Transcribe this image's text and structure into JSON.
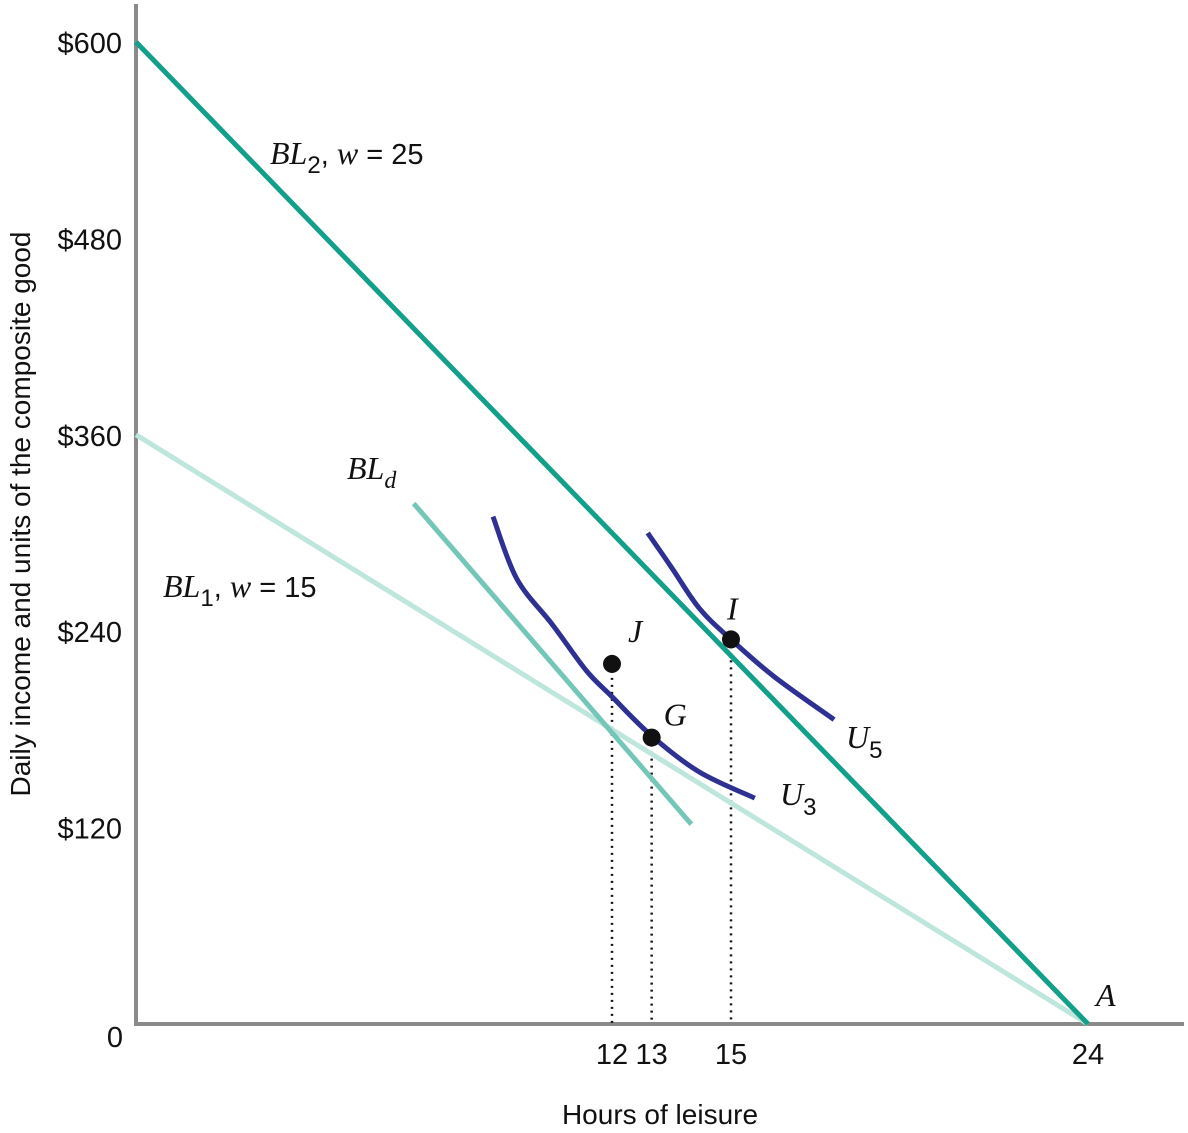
{
  "chart_data": {
    "type": "line",
    "title": "",
    "xlabel": "Hours of leisure",
    "ylabel": "Daily income and units of the composite good",
    "xlim": [
      0,
      25.1
    ],
    "ylim": [
      0,
      600
    ],
    "x_ticks": [
      {
        "value": 12,
        "label": "12"
      },
      {
        "value": 13,
        "label": "13"
      },
      {
        "value": 15,
        "label": "15"
      },
      {
        "value": 24,
        "label": "24"
      }
    ],
    "y_ticks": [
      {
        "value": 120,
        "label": "$120"
      },
      {
        "value": 240,
        "label": "$240"
      },
      {
        "value": 360,
        "label": "$360"
      },
      {
        "value": 480,
        "label": "$480"
      },
      {
        "value": 600,
        "label": "$600"
      }
    ],
    "origin_label": "0",
    "grid": false,
    "series": [
      {
        "name": "BL2, w = 25",
        "color": "#12a08a",
        "points": [
          [
            0,
            600
          ],
          [
            24,
            0
          ]
        ]
      },
      {
        "name": "BL1, w = 15",
        "color": "#bfe6dc",
        "points": [
          [
            0,
            360
          ],
          [
            24,
            0
          ]
        ]
      },
      {
        "name": "BLd",
        "color": "#74c7b8",
        "points": [
          [
            7.0,
            318
          ],
          [
            14.0,
            122
          ]
        ]
      },
      {
        "name": "U3",
        "color": "#2e3192",
        "points": [
          [
            9.0,
            310
          ],
          [
            9.6,
            272
          ],
          [
            10.5,
            244
          ],
          [
            11.35,
            216
          ],
          [
            12,
            200
          ],
          [
            13,
            176
          ],
          [
            14.2,
            154
          ],
          [
            15.6,
            138
          ]
        ]
      },
      {
        "name": "U5",
        "color": "#2e3192",
        "points": [
          [
            12.9,
            300
          ],
          [
            13.5,
            279
          ],
          [
            14.2,
            254
          ],
          [
            15,
            235
          ],
          [
            16.1,
            212
          ],
          [
            17.6,
            186
          ]
        ]
      }
    ],
    "points": [
      {
        "label": "J",
        "x": 12,
        "y": 220
      },
      {
        "label": "G",
        "x": 13,
        "y": 175
      },
      {
        "label": "I",
        "x": 15,
        "y": 235
      },
      {
        "label": "A",
        "x": 24,
        "y": 0
      }
    ],
    "labels": {
      "bl2": {
        "main": "BL",
        "sub": "2",
        "rest": ", ",
        "var": "w",
        "eq": " = 25"
      },
      "bl1": {
        "main": "BL",
        "sub": "1",
        "rest": ", ",
        "var": "w",
        "eq": " = 15"
      },
      "bld": {
        "main": "BL",
        "sub": "d"
      },
      "u3": {
        "main": "U",
        "sub": "3"
      },
      "u5": {
        "main": "U",
        "sub": "5"
      }
    }
  }
}
